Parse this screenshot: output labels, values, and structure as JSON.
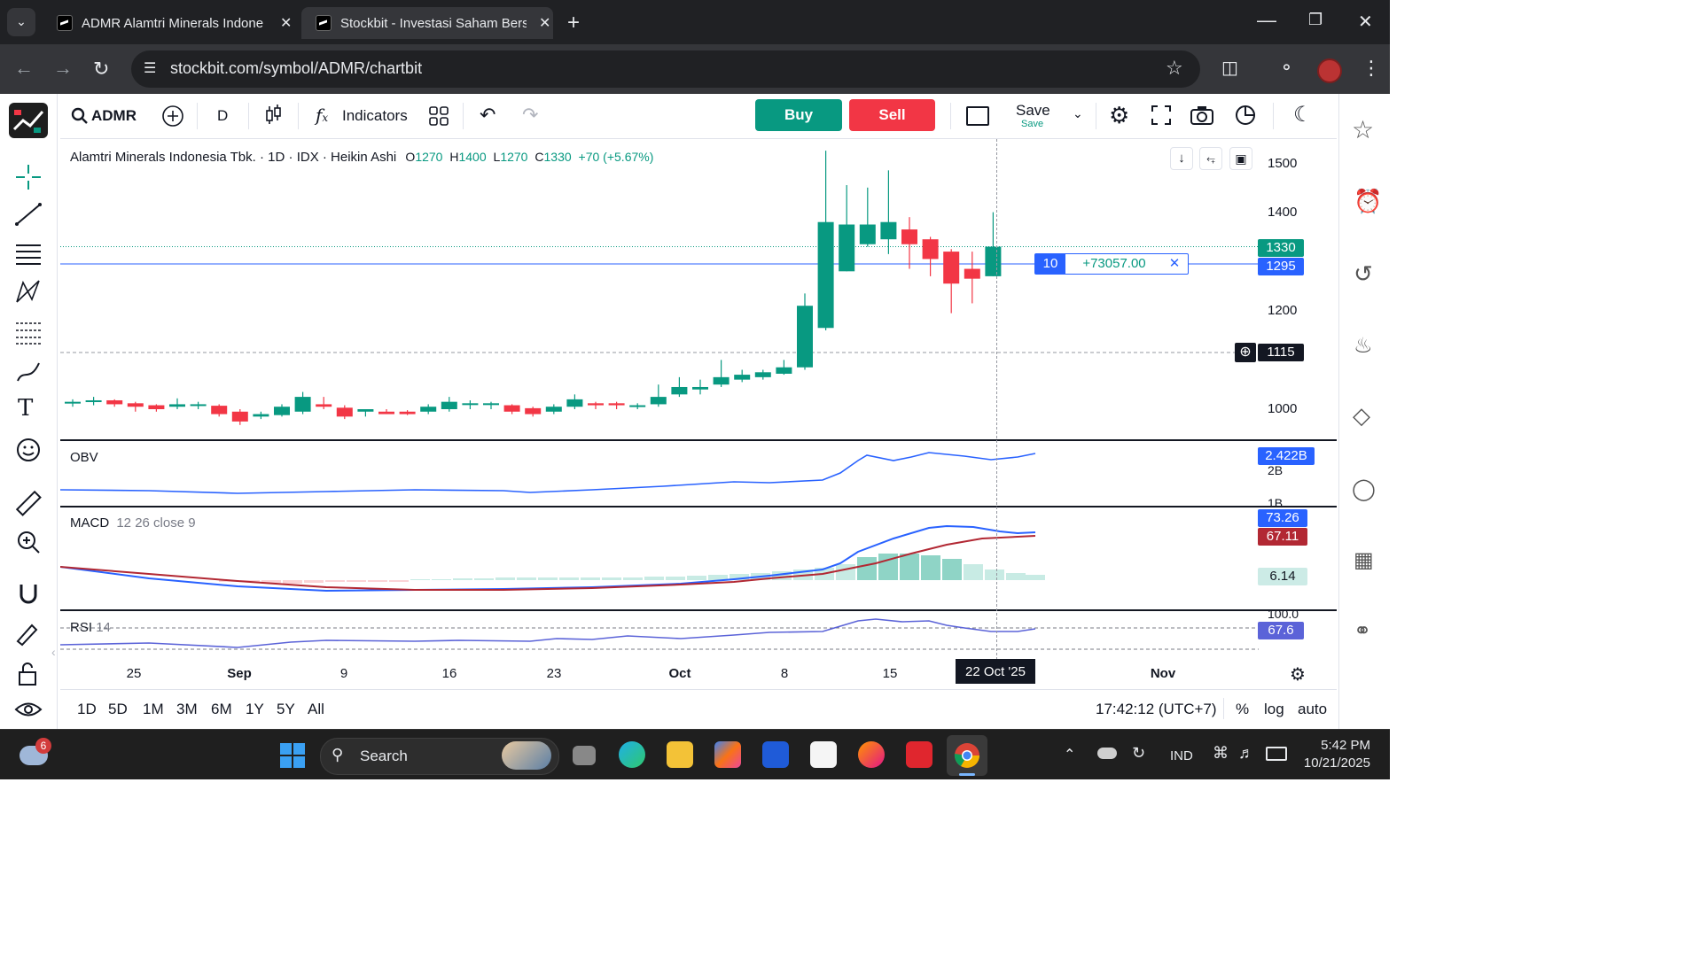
{
  "browser": {
    "tabs": [
      {
        "title": "ADMR Alamtri Minerals Indone",
        "active": false
      },
      {
        "title": "Stockbit - Investasi Saham Bers",
        "active": true
      }
    ],
    "url": "stockbit.com/symbol/ADMR/chartbit"
  },
  "toolbar": {
    "symbol": "ADMR",
    "interval": "D",
    "indicators_label": "Indicators",
    "buy_label": "Buy",
    "sell_label": "Sell",
    "save_label": "Save",
    "save_sub": "Save"
  },
  "legend": {
    "name": "Alamtri Minerals Indonesia Tbk.",
    "interval": "1D",
    "exchange": "IDX",
    "chart_style": "Heikin Ashi",
    "o_label": "O",
    "o_value": "1270",
    "h_label": "H",
    "h_value": "1400",
    "l_label": "L",
    "l_value": "1270",
    "c_label": "C",
    "c_value": "1330",
    "change": "+70 (+5.67%)"
  },
  "order_line": {
    "qty": "10",
    "pnl": "+73057.00"
  },
  "price_axis": {
    "labels": [
      "1500",
      "1400",
      "1200",
      "1000"
    ],
    "last_price": "1330",
    "order_price": "1295",
    "crosshair_price": "1115"
  },
  "panes": {
    "obv": {
      "title": "OBV",
      "value": "2.422B",
      "axis": [
        "2B",
        "1B"
      ]
    },
    "macd": {
      "title": "MACD",
      "params": "12 26 close 9",
      "macd": "73.26",
      "signal": "67.11",
      "hist": "6.14"
    },
    "rsi": {
      "title": "RSI",
      "params": "14",
      "value": "67.6",
      "axis_top": "100.0"
    }
  },
  "time_axis": {
    "labels": [
      "25",
      "Sep",
      "9",
      "16",
      "23",
      "Oct",
      "8",
      "15",
      "Nov"
    ],
    "crosshair_date": "22 Oct '25"
  },
  "bottom_bar": {
    "ranges": [
      "1D",
      "5D",
      "1M",
      "3M",
      "6M",
      "1Y",
      "5Y",
      "All"
    ],
    "clock": "17:42:12 (UTC+7)",
    "percent": "%",
    "log": "log",
    "auto": "auto"
  },
  "taskbar": {
    "search": "Search",
    "weather_badge": "6",
    "lang": "IND",
    "time": "5:42 PM",
    "date": "10/21/2025"
  },
  "colors": {
    "up": "#089981",
    "down": "#f23645",
    "accent": "#2962ff"
  },
  "chart_data": {
    "type": "candlestick",
    "style": "Heikin Ashi",
    "candles": [
      {
        "x": "Aug 21",
        "o": 1015,
        "h": 1020,
        "l": 1005,
        "c": 1015
      },
      {
        "x": "Aug 22",
        "o": 1015,
        "h": 1025,
        "l": 1008,
        "c": 1018
      },
      {
        "x": "Aug 25",
        "o": 1018,
        "h": 1020,
        "l": 1005,
        "c": 1010
      },
      {
        "x": "Aug 26",
        "o": 1012,
        "h": 1015,
        "l": 995,
        "c": 1005
      },
      {
        "x": "Aug 27",
        "o": 1008,
        "h": 1010,
        "l": 995,
        "c": 1000
      },
      {
        "x": "Aug 28",
        "o": 1005,
        "h": 1022,
        "l": 1000,
        "c": 1010
      },
      {
        "x": "Aug 29",
        "o": 1010,
        "h": 1015,
        "l": 1000,
        "c": 1010
      },
      {
        "x": "Sep 1",
        "o": 1007,
        "h": 1010,
        "l": 985,
        "c": 990
      },
      {
        "x": "Sep 2",
        "o": 995,
        "h": 1000,
        "l": 968,
        "c": 975
      },
      {
        "x": "Sep 3",
        "o": 985,
        "h": 995,
        "l": 980,
        "c": 990
      },
      {
        "x": "Sep 4",
        "o": 988,
        "h": 1010,
        "l": 985,
        "c": 1005
      },
      {
        "x": "Sep 5",
        "o": 995,
        "h": 1035,
        "l": 990,
        "c": 1025
      },
      {
        "x": "Sep 8",
        "o": 1010,
        "h": 1025,
        "l": 1000,
        "c": 1005
      },
      {
        "x": "Sep 9",
        "o": 1003,
        "h": 1008,
        "l": 980,
        "c": 985
      },
      {
        "x": "Sep 10",
        "o": 995,
        "h": 1000,
        "l": 985,
        "c": 1000
      },
      {
        "x": "Sep 11",
        "o": 995,
        "h": 1000,
        "l": 990,
        "c": 990
      },
      {
        "x": "Sep 12",
        "o": 995,
        "h": 998,
        "l": 988,
        "c": 990
      },
      {
        "x": "Sep 15",
        "o": 995,
        "h": 1010,
        "l": 990,
        "c": 1005
      },
      {
        "x": "Sep 16",
        "o": 1000,
        "h": 1025,
        "l": 995,
        "c": 1015
      },
      {
        "x": "Sep 17",
        "o": 1012,
        "h": 1018,
        "l": 1000,
        "c": 1012
      },
      {
        "x": "Sep 18",
        "o": 1012,
        "h": 1015,
        "l": 1000,
        "c": 1012
      },
      {
        "x": "Sep 19",
        "o": 1008,
        "h": 1010,
        "l": 990,
        "c": 995
      },
      {
        "x": "Sep 22",
        "o": 1002,
        "h": 1005,
        "l": 985,
        "c": 990
      },
      {
        "x": "Sep 23",
        "o": 995,
        "h": 1010,
        "l": 990,
        "c": 1005
      },
      {
        "x": "Sep 24",
        "o": 1005,
        "h": 1030,
        "l": 1000,
        "c": 1020
      },
      {
        "x": "Sep 25",
        "o": 1012,
        "h": 1015,
        "l": 1000,
        "c": 1008
      },
      {
        "x": "Sep 26",
        "o": 1012,
        "h": 1015,
        "l": 1000,
        "c": 1008
      },
      {
        "x": "Sep 29",
        "o": 1005,
        "h": 1012,
        "l": 1000,
        "c": 1008
      },
      {
        "x": "Sep 30",
        "o": 1010,
        "h": 1050,
        "l": 1005,
        "c": 1025
      },
      {
        "x": "Oct 1",
        "o": 1030,
        "h": 1065,
        "l": 1025,
        "c": 1045
      },
      {
        "x": "Oct 2",
        "o": 1040,
        "h": 1060,
        "l": 1030,
        "c": 1045
      },
      {
        "x": "Oct 3",
        "o": 1050,
        "h": 1100,
        "l": 1045,
        "c": 1065
      },
      {
        "x": "Oct 6",
        "o": 1060,
        "h": 1080,
        "l": 1055,
        "c": 1070
      },
      {
        "x": "Oct 7",
        "o": 1065,
        "h": 1080,
        "l": 1060,
        "c": 1075
      },
      {
        "x": "Oct 8",
        "o": 1072,
        "h": 1100,
        "l": 1070,
        "c": 1085
      },
      {
        "x": "Oct 9",
        "o": 1085,
        "h": 1235,
        "l": 1080,
        "c": 1210
      },
      {
        "x": "Oct 10",
        "o": 1165,
        "h": 1525,
        "l": 1160,
        "c": 1380
      },
      {
        "x": "Oct 13",
        "o": 1280,
        "h": 1455,
        "l": 1280,
        "c": 1375
      },
      {
        "x": "Oct 14",
        "o": 1335,
        "h": 1450,
        "l": 1330,
        "c": 1375
      },
      {
        "x": "Oct 15",
        "o": 1345,
        "h": 1485,
        "l": 1315,
        "c": 1380
      },
      {
        "x": "Oct 16",
        "o": 1365,
        "h": 1390,
        "l": 1285,
        "c": 1335
      },
      {
        "x": "Oct 17",
        "o": 1345,
        "h": 1350,
        "l": 1270,
        "c": 1305
      },
      {
        "x": "Oct 20",
        "o": 1320,
        "h": 1325,
        "l": 1195,
        "c": 1255
      },
      {
        "x": "Oct 21",
        "o": 1285,
        "h": 1320,
        "l": 1215,
        "c": 1265
      },
      {
        "x": "Oct 22",
        "o": 1270,
        "h": 1400,
        "l": 1270,
        "c": 1330
      }
    ],
    "ylim": [
      950,
      1530
    ]
  }
}
